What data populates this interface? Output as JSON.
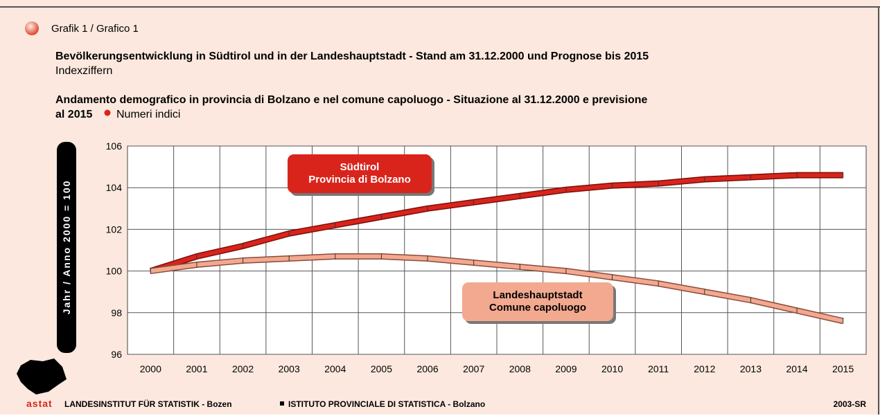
{
  "header": {
    "label": "Grafik 1 / Grafico 1",
    "title_de": "Bevölkerungsentwicklung in Südtirol und in der Landeshauptstadt - Stand am 31.12.2000 und Prognose bis 2015",
    "subtitle_de": "Indexziffern",
    "title_it": [
      "Andamento demografico in provincia di Bolzano e nel comune capoluogo - Situazione al 31.12.2000 e previsione",
      "al 2015"
    ],
    "subtitle_it": "Numeri indici"
  },
  "chart_data": {
    "type": "line",
    "y_label": "Jahr / Anno 2000 = 100",
    "categories": [
      "2000",
      "2001",
      "2002",
      "2003",
      "2004",
      "2005",
      "2006",
      "2007",
      "2008",
      "2009",
      "2010",
      "2011",
      "2012",
      "2013",
      "2014",
      "2015"
    ],
    "series": [
      {
        "name": [
          "Südtirol",
          "Provincia di Bolzano"
        ],
        "color": "#d9241c",
        "values": [
          100.0,
          100.7,
          101.2,
          101.8,
          102.2,
          102.6,
          103.0,
          103.3,
          103.6,
          103.9,
          104.1,
          104.2,
          104.4,
          104.5,
          104.6,
          104.6
        ]
      },
      {
        "name": [
          "Landeshauptstadt",
          "Comune capoluogo"
        ],
        "color": "#f2a990",
        "values": [
          100.0,
          100.3,
          100.5,
          100.6,
          100.7,
          100.7,
          100.6,
          100.4,
          100.2,
          100.0,
          99.7,
          99.4,
          99.0,
          98.6,
          98.1,
          97.6
        ]
      }
    ],
    "ylim": [
      96,
      106
    ],
    "yticks": [
      96,
      98,
      100,
      102,
      104,
      106
    ],
    "grid": true
  },
  "footer": {
    "logo": "astat",
    "de": "LANDESINSTITUT FÜR STATISTIK - Bozen",
    "it": "ISTITUTO PROVINCIALE DI STATISTICA - Bolzano",
    "code": "2003-SR"
  }
}
